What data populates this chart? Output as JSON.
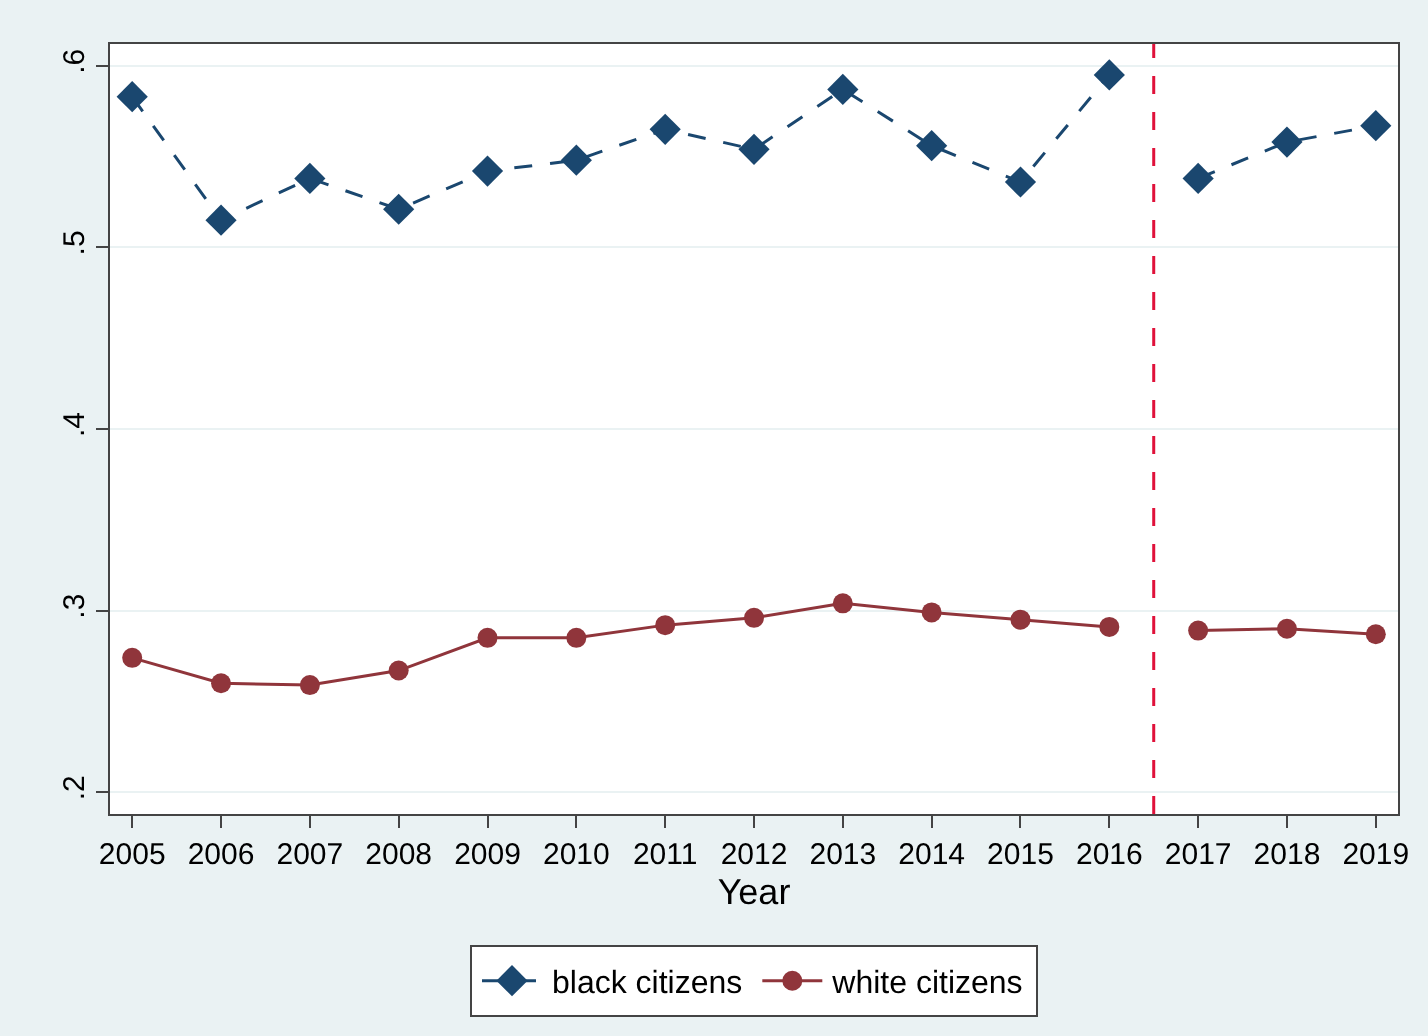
{
  "chart_data": {
    "type": "line",
    "xlabel": "Year",
    "x": [
      2005,
      2006,
      2007,
      2008,
      2009,
      2010,
      2011,
      2012,
      2013,
      2014,
      2015,
      2016,
      2016.5,
      2017,
      2018,
      2019
    ],
    "series": [
      {
        "name": "black citizens",
        "color": "#1a476f",
        "marker": "diamond",
        "line_style": "dashed",
        "values": [
          0.583,
          0.515,
          0.538,
          0.521,
          0.542,
          0.548,
          0.565,
          0.554,
          0.587,
          0.556,
          0.536,
          0.595,
          null,
          0.538,
          0.558,
          0.567
        ]
      },
      {
        "name": "white citizens",
        "color": "#90353b",
        "marker": "circle",
        "line_style": "solid",
        "values": [
          0.274,
          0.26,
          0.259,
          0.267,
          0.285,
          0.285,
          0.292,
          0.296,
          0.304,
          0.299,
          0.295,
          0.291,
          null,
          0.289,
          0.29,
          0.287
        ]
      }
    ],
    "xlim": [
      2004.75,
      2019.25
    ],
    "xticks": [
      2005,
      2006,
      2007,
      2008,
      2009,
      2010,
      2011,
      2012,
      2013,
      2014,
      2015,
      2016,
      2017,
      2018,
      2019
    ],
    "ylim": [
      0.188,
      0.612
    ],
    "yticks": [
      {
        "value": 0.2,
        "label": ".2"
      },
      {
        "value": 0.3,
        "label": ".3"
      },
      {
        "value": 0.4,
        "label": ".4"
      },
      {
        "value": 0.5,
        "label": ".5"
      },
      {
        "value": 0.6,
        "label": ".6"
      }
    ],
    "ref_lines": [
      {
        "axis": "x",
        "value": 2016.5,
        "color": "#e0113a",
        "line_style": "dashed"
      }
    ],
    "grid": "y",
    "legend": "bottom"
  }
}
